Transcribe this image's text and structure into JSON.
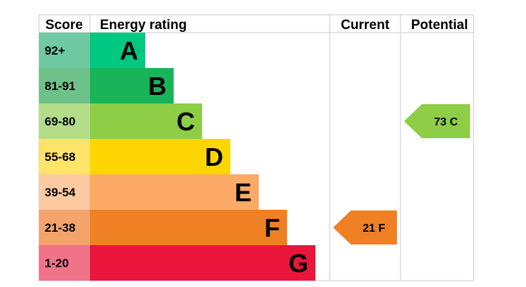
{
  "chart_data": {
    "type": "bar",
    "headers": {
      "score": "Score",
      "rating": "Energy rating",
      "current": "Current",
      "potential": "Potential"
    },
    "bands": [
      {
        "letter": "A",
        "range": "92+",
        "color": "#00c781",
        "score_color": "#6fc9a3"
      },
      {
        "letter": "B",
        "range": "81-91",
        "color": "#19b459",
        "score_color": "#6fc18a"
      },
      {
        "letter": "C",
        "range": "69-80",
        "color": "#8dce46",
        "score_color": "#b4dd8a"
      },
      {
        "letter": "D",
        "range": "55-68",
        "color": "#ffd500",
        "score_color": "#ffe36a"
      },
      {
        "letter": "E",
        "range": "39-54",
        "color": "#fcaa65",
        "score_color": "#fdc9a1"
      },
      {
        "letter": "F",
        "range": "21-38",
        "color": "#ef8023",
        "score_color": "#f4a46b"
      },
      {
        "letter": "G",
        "range": "1-20",
        "color": "#e9153b",
        "score_color": "#f07389"
      }
    ],
    "current": {
      "label": "21 F",
      "value": 21,
      "band": "F",
      "color": "#ef8023"
    },
    "potential": {
      "label": "73 C",
      "value": 73,
      "band": "C",
      "color": "#8dce46"
    }
  }
}
